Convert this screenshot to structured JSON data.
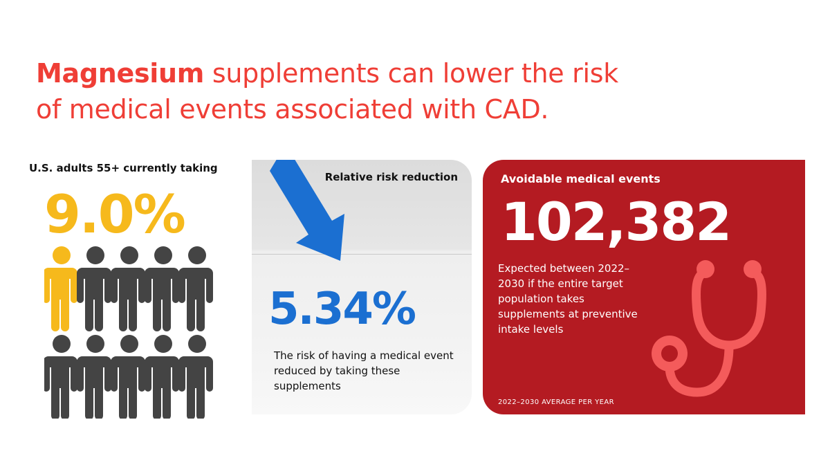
{
  "headline": {
    "strong": "Magnesium",
    "line1_rest": " supplements can lower the risk",
    "line2": "of medical events associated with CAD."
  },
  "adults_panel": {
    "label": "U.S. adults 55+ currently taking",
    "value": "9.0%",
    "people_total": 10,
    "people_highlighted": 1,
    "highlight_color": "#f6b91c",
    "base_color": "#444444"
  },
  "risk_panel": {
    "label": "Relative risk reduction",
    "value": "5.34%",
    "description": "The risk of having a medical event reduced by taking these supplements",
    "icon": "down-arrow-icon",
    "accent_color": "#1b6fd1"
  },
  "events_panel": {
    "label": "Avoidable medical events",
    "value": "102,382",
    "description": "Expected between 2022–2030 if the entire target population takes supplements at preventive intake levels",
    "footnote": "2022–2030 AVERAGE PER YEAR",
    "icon": "stethoscope-icon",
    "background_color": "#b41b22"
  },
  "colors": {
    "headline": "#ef3e36"
  }
}
